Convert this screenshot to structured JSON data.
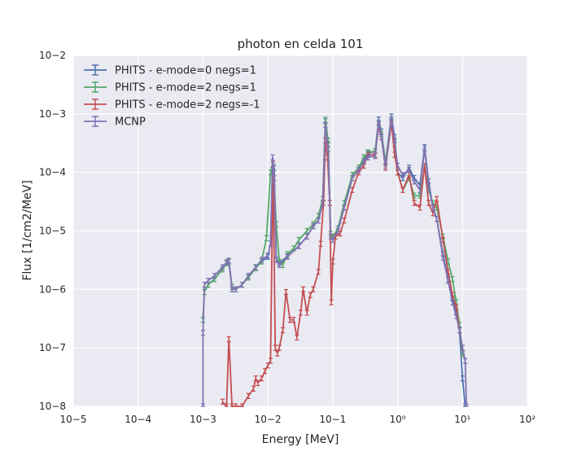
{
  "chart_data": {
    "type": "line",
    "title": "photon en celda 101",
    "xlabel": "Energy [MeV]",
    "ylabel": "Flux [1/cm2/MeV]",
    "xscale": "log",
    "yscale": "log",
    "xlim": [
      1e-05,
      100
    ],
    "ylim": [
      1e-08,
      0.01
    ],
    "grid": true,
    "legend_position": "upper-left",
    "error_bars": true,
    "x_ticks": [
      {
        "value": 1e-05,
        "label": "10−5"
      },
      {
        "value": 0.0001,
        "label": "10−4"
      },
      {
        "value": 0.001,
        "label": "10−3"
      },
      {
        "value": 0.01,
        "label": "10−2"
      },
      {
        "value": 0.1,
        "label": "10−1"
      },
      {
        "value": 1,
        "label": "10⁰"
      },
      {
        "value": 10,
        "label": "10¹"
      },
      {
        "value": 100,
        "label": "10²"
      }
    ],
    "y_ticks": [
      {
        "value": 1e-08,
        "label": "10−8"
      },
      {
        "value": 1e-07,
        "label": "10−7"
      },
      {
        "value": 1e-06,
        "label": "10−6"
      },
      {
        "value": 1e-05,
        "label": "10−5"
      },
      {
        "value": 0.0001,
        "label": "10−4"
      },
      {
        "value": 0.001,
        "label": "10−3"
      },
      {
        "value": 0.01,
        "label": "10−2"
      }
    ],
    "series": [
      {
        "name": "PHITS - e-mode=0  negs=1",
        "color": "#4c72b0",
        "points": [
          [
            0.001,
            3e-07
          ],
          [
            0.00105,
            9e-07
          ],
          [
            0.0012,
            1.2e-06
          ],
          [
            0.0015,
            1.5e-06
          ],
          [
            0.002,
            2.2e-06
          ],
          [
            0.0023,
            2.8e-06
          ],
          [
            0.0025,
            3e-06
          ],
          [
            0.0028,
            1.1e-06
          ],
          [
            0.0032,
            1e-06
          ],
          [
            0.004,
            1.2e-06
          ],
          [
            0.005,
            1.6e-06
          ],
          [
            0.0065,
            2.3e-06
          ],
          [
            0.008,
            3e-06
          ],
          [
            0.01,
            3.6e-06
          ],
          [
            0.011,
            6e-06
          ],
          [
            0.0118,
            0.00011
          ],
          [
            0.0125,
            0.00012
          ],
          [
            0.0135,
            3.2e-06
          ],
          [
            0.015,
            2.8e-06
          ],
          [
            0.02,
            3.7e-06
          ],
          [
            0.03,
            5.5e-06
          ],
          [
            0.04,
            8e-06
          ],
          [
            0.05,
            1.2e-05
          ],
          [
            0.06,
            1.5e-05
          ],
          [
            0.07,
            3e-05
          ],
          [
            0.077,
            0.00075
          ],
          [
            0.085,
            0.0003
          ],
          [
            0.093,
            8e-06
          ],
          [
            0.1,
            7e-06
          ],
          [
            0.12,
            1e-05
          ],
          [
            0.15,
            2.5e-05
          ],
          [
            0.2,
            8e-05
          ],
          [
            0.25,
            0.00011
          ],
          [
            0.3,
            0.00016
          ],
          [
            0.35,
            0.00021
          ],
          [
            0.45,
            0.00023
          ],
          [
            0.51,
            0.0008
          ],
          [
            0.56,
            0.0005
          ],
          [
            0.65,
            0.00015
          ],
          [
            0.8,
            0.0009
          ],
          [
            0.9,
            0.0004
          ],
          [
            1.0,
            0.0001
          ],
          [
            1.2,
            8e-05
          ],
          [
            1.5,
            0.00012
          ],
          [
            1.8,
            8e-05
          ],
          [
            2.2,
            6e-05
          ],
          [
            2.6,
            0.00027
          ],
          [
            3.0,
            7e-05
          ],
          [
            3.5,
            2.5e-05
          ],
          [
            4.0,
            1.6e-05
          ],
          [
            5.0,
            4e-06
          ],
          [
            6.0,
            1.5e-06
          ],
          [
            7.0,
            7e-07
          ],
          [
            8.0,
            4e-07
          ],
          [
            9.0,
            2e-07
          ],
          [
            10.0,
            3e-08
          ],
          [
            11.0,
            1e-08
          ]
        ]
      },
      {
        "name": "PHITS - e-mode=2  negs=1",
        "color": "#55a868",
        "points": [
          [
            0.001,
            3e-07
          ],
          [
            0.00105,
            9e-07
          ],
          [
            0.0012,
            1.2e-06
          ],
          [
            0.0015,
            1.5e-06
          ],
          [
            0.002,
            2.2e-06
          ],
          [
            0.0023,
            2.8e-06
          ],
          [
            0.0025,
            3e-06
          ],
          [
            0.0028,
            1.1e-06
          ],
          [
            0.0032,
            1e-06
          ],
          [
            0.004,
            1.2e-06
          ],
          [
            0.005,
            1.6e-06
          ],
          [
            0.0065,
            2.3e-06
          ],
          [
            0.008,
            3e-06
          ],
          [
            0.0095,
            7.5e-06
          ],
          [
            0.011,
            0.0001
          ],
          [
            0.012,
            0.00013
          ],
          [
            0.0135,
            1.3e-05
          ],
          [
            0.015,
            3e-06
          ],
          [
            0.017,
            2.6e-06
          ],
          [
            0.02,
            4e-06
          ],
          [
            0.025,
            5e-06
          ],
          [
            0.03,
            7e-06
          ],
          [
            0.04,
            1e-05
          ],
          [
            0.05,
            1.3e-05
          ],
          [
            0.06,
            1.8e-05
          ],
          [
            0.07,
            3.5e-05
          ],
          [
            0.077,
            0.0008
          ],
          [
            0.085,
            0.00035
          ],
          [
            0.093,
            9e-06
          ],
          [
            0.1,
            8e-06
          ],
          [
            0.12,
            1.1e-05
          ],
          [
            0.15,
            3e-05
          ],
          [
            0.2,
            9e-05
          ],
          [
            0.25,
            0.00012
          ],
          [
            0.3,
            0.00018
          ],
          [
            0.35,
            0.00022
          ],
          [
            0.45,
            0.00023
          ],
          [
            0.51,
            0.0007
          ],
          [
            0.56,
            0.00045
          ],
          [
            0.65,
            0.00015
          ],
          [
            0.8,
            0.0008
          ],
          [
            0.9,
            0.0003
          ],
          [
            1.0,
            0.0001
          ],
          [
            1.2,
            5e-05
          ],
          [
            1.5,
            8e-05
          ],
          [
            1.8,
            4e-05
          ],
          [
            2.2,
            4e-05
          ],
          [
            2.6,
            0.00012
          ],
          [
            3.0,
            5e-05
          ],
          [
            3.5,
            3e-05
          ],
          [
            4.0,
            2.5e-05
          ],
          [
            5.0,
            8e-06
          ],
          [
            6.0,
            3e-06
          ],
          [
            7.0,
            1.5e-06
          ],
          [
            8.0,
            6e-07
          ],
          [
            9.0,
            2.5e-07
          ],
          [
            10.0,
            8e-08
          ],
          [
            11.0,
            6e-08
          ]
        ]
      },
      {
        "name": "PHITS - e-mode=2  negs=-1",
        "color": "#c44e52",
        "points": [
          [
            0.002,
            1.2e-08
          ],
          [
            0.0023,
            1e-08
          ],
          [
            0.0025,
            1.4e-07
          ],
          [
            0.0028,
            1e-08
          ],
          [
            0.0032,
            1e-08
          ],
          [
            0.004,
            1e-08
          ],
          [
            0.005,
            1.5e-08
          ],
          [
            0.006,
            2e-08
          ],
          [
            0.0065,
            3e-08
          ],
          [
            0.007,
            2.5e-08
          ],
          [
            0.008,
            3e-08
          ],
          [
            0.009,
            4e-08
          ],
          [
            0.01,
            5e-08
          ],
          [
            0.011,
            6e-08
          ],
          [
            0.012,
            0.00014
          ],
          [
            0.013,
            1e-07
          ],
          [
            0.014,
            8e-08
          ],
          [
            0.015,
            1e-07
          ],
          [
            0.017,
            2e-07
          ],
          [
            0.019,
            9e-07
          ],
          [
            0.022,
            3e-07
          ],
          [
            0.025,
            3e-07
          ],
          [
            0.028,
            1.5e-07
          ],
          [
            0.032,
            4e-07
          ],
          [
            0.035,
            1e-06
          ],
          [
            0.04,
            4e-07
          ],
          [
            0.045,
            8e-07
          ],
          [
            0.05,
            1e-06
          ],
          [
            0.06,
            2e-06
          ],
          [
            0.065,
            6e-06
          ],
          [
            0.072,
            3e-05
          ],
          [
            0.077,
            0.00035
          ],
          [
            0.083,
            0.00018
          ],
          [
            0.09,
            3e-05
          ],
          [
            0.095,
            6e-07
          ],
          [
            0.1,
            3e-06
          ],
          [
            0.11,
            8e-06
          ],
          [
            0.13,
            9e-06
          ],
          [
            0.15,
            1.5e-05
          ],
          [
            0.2,
            5e-05
          ],
          [
            0.25,
            0.0001
          ],
          [
            0.3,
            0.00013
          ],
          [
            0.35,
            0.0002
          ],
          [
            0.45,
            0.0002
          ],
          [
            0.51,
            0.0006
          ],
          [
            0.56,
            0.0004
          ],
          [
            0.65,
            0.00012
          ],
          [
            0.8,
            0.0007
          ],
          [
            0.9,
            0.0002
          ],
          [
            1.0,
            0.0001
          ],
          [
            1.2,
            5e-05
          ],
          [
            1.5,
            9e-05
          ],
          [
            1.8,
            3e-05
          ],
          [
            2.2,
            2.5e-05
          ],
          [
            2.6,
            0.00013
          ],
          [
            3.0,
            3e-05
          ],
          [
            3.5,
            2e-05
          ],
          [
            4.0,
            3.5e-05
          ],
          [
            5.0,
            7e-06
          ],
          [
            6.0,
            2e-06
          ],
          [
            7.0,
            8e-07
          ],
          [
            8.0,
            5e-07
          ],
          [
            9.0,
            2e-07
          ],
          [
            10.0,
            1e-07
          ]
        ]
      },
      {
        "name": "MCNP",
        "color": "#8172b2",
        "points": [
          [
            0.001,
            1e-08
          ],
          [
            0.001,
            1.8e-07
          ],
          [
            0.00105,
            1.2e-06
          ],
          [
            0.0012,
            1.4e-06
          ],
          [
            0.0015,
            1.7e-06
          ],
          [
            0.002,
            2.4e-06
          ],
          [
            0.0023,
            2.9e-06
          ],
          [
            0.0025,
            3.1e-06
          ],
          [
            0.0028,
            1e-06
          ],
          [
            0.0032,
            1e-06
          ],
          [
            0.004,
            1.2e-06
          ],
          [
            0.005,
            1.7e-06
          ],
          [
            0.0065,
            2.4e-06
          ],
          [
            0.008,
            3.2e-06
          ],
          [
            0.01,
            3.8e-06
          ],
          [
            0.011,
            6e-06
          ],
          [
            0.0118,
            0.00018
          ],
          [
            0.0125,
            8e-05
          ],
          [
            0.0135,
            3.2e-06
          ],
          [
            0.015,
            2.6e-06
          ],
          [
            0.02,
            3.6e-06
          ],
          [
            0.03,
            5.5e-06
          ],
          [
            0.04,
            8e-06
          ],
          [
            0.05,
            1.2e-05
          ],
          [
            0.06,
            1.5e-05
          ],
          [
            0.07,
            3e-05
          ],
          [
            0.077,
            0.00065
          ],
          [
            0.085,
            0.00025
          ],
          [
            0.093,
            8e-06
          ],
          [
            0.1,
            7e-06
          ],
          [
            0.12,
            1e-05
          ],
          [
            0.15,
            2.5e-05
          ],
          [
            0.2,
            8e-05
          ],
          [
            0.25,
            0.00011
          ],
          [
            0.3,
            0.00015
          ],
          [
            0.35,
            0.00018
          ],
          [
            0.45,
            0.00019
          ],
          [
            0.51,
            0.0007
          ],
          [
            0.56,
            0.0004
          ],
          [
            0.65,
            0.00013
          ],
          [
            0.8,
            0.0008
          ],
          [
            0.9,
            0.00035
          ],
          [
            1.0,
            0.00013
          ],
          [
            1.2,
            9e-05
          ],
          [
            1.5,
            0.00011
          ],
          [
            1.8,
            7e-05
          ],
          [
            2.2,
            5e-05
          ],
          [
            2.6,
            0.00025
          ],
          [
            3.0,
            6e-05
          ],
          [
            3.5,
            2.5e-05
          ],
          [
            4.0,
            1.6e-05
          ],
          [
            5.0,
            3.5e-06
          ],
          [
            6.0,
            1.4e-06
          ],
          [
            7.0,
            6e-07
          ],
          [
            8.0,
            3.5e-07
          ],
          [
            9.0,
            2e-07
          ],
          [
            10.0,
            1e-07
          ],
          [
            11.0,
            6e-08
          ],
          [
            11.5,
            1e-08
          ]
        ]
      }
    ]
  }
}
